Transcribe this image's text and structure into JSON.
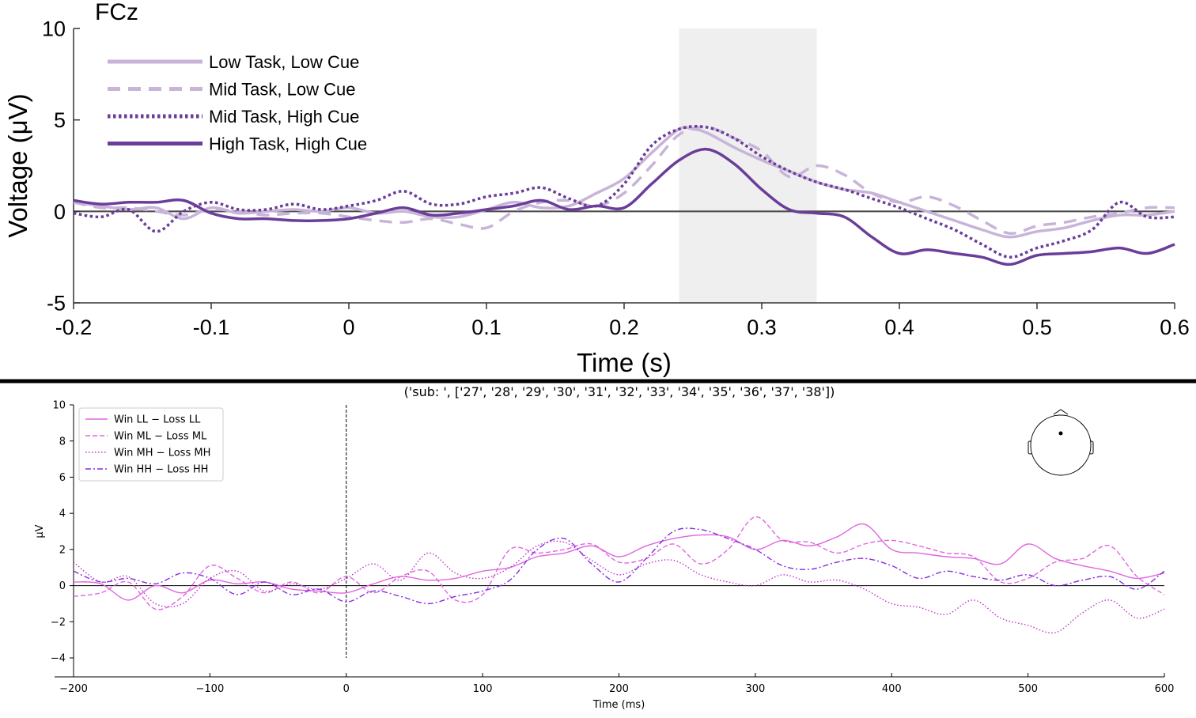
{
  "chart_data": [
    {
      "type": "line",
      "title": "FCz",
      "xlabel": "Time (s)",
      "ylabel": "Voltage (μV)",
      "xlim": [
        -0.2,
        0.6
      ],
      "ylim": [
        -5,
        10
      ],
      "xticks": [
        -0.2,
        -0.1,
        0,
        0.1,
        0.2,
        0.3,
        0.4,
        0.5,
        0.6
      ],
      "xtick_labels": [
        "-0.2",
        "-0.1",
        "0",
        "0.1",
        "0.2",
        "0.3",
        "0.4",
        "0.5",
        "0.6"
      ],
      "yticks": [
        -5,
        0,
        5,
        10
      ],
      "ytick_labels": [
        "-5",
        "0",
        "5",
        "10"
      ],
      "shaded_window": [
        0.24,
        0.34
      ],
      "zero_line": 0,
      "grid": false,
      "legend_position": "top-left",
      "series": [
        {
          "name": "Low Task, Low Cue",
          "color": "#c8b4d8",
          "style": "solid",
          "x": [
            -0.2,
            -0.18,
            -0.16,
            -0.14,
            -0.12,
            -0.1,
            -0.08,
            -0.06,
            -0.04,
            -0.02,
            0,
            0.02,
            0.04,
            0.06,
            0.08,
            0.1,
            0.12,
            0.14,
            0.16,
            0.18,
            0.2,
            0.22,
            0.24,
            0.25,
            0.26,
            0.28,
            0.3,
            0.32,
            0.34,
            0.36,
            0.38,
            0.4,
            0.42,
            0.44,
            0.46,
            0.48,
            0.5,
            0.52,
            0.54,
            0.56,
            0.58,
            0.6
          ],
          "y": [
            0.5,
            0.3,
            0.1,
            0.2,
            -0.4,
            0.2,
            -0.1,
            0.0,
            0.1,
            0.0,
            0.2,
            -0.1,
            0.0,
            -0.3,
            -0.3,
            0.1,
            0.5,
            0.2,
            0.3,
            1.0,
            1.8,
            3.2,
            4.5,
            4.5,
            4.3,
            3.5,
            2.8,
            2.2,
            1.6,
            1.2,
            1.0,
            0.5,
            0.0,
            -0.5,
            -1.0,
            -1.4,
            -1.1,
            -0.9,
            -0.5,
            -0.2,
            -0.2,
            0.0
          ]
        },
        {
          "name": "Mid Task, Low Cue",
          "color": "#c8b4d8",
          "style": "dashed",
          "x": [
            -0.2,
            -0.18,
            -0.16,
            -0.14,
            -0.12,
            -0.1,
            -0.08,
            -0.06,
            -0.04,
            -0.02,
            0,
            0.02,
            0.04,
            0.06,
            0.08,
            0.1,
            0.12,
            0.14,
            0.16,
            0.18,
            0.2,
            0.22,
            0.24,
            0.26,
            0.28,
            0.3,
            0.32,
            0.34,
            0.36,
            0.38,
            0.4,
            0.42,
            0.44,
            0.46,
            0.48,
            0.5,
            0.52,
            0.54,
            0.56,
            0.58,
            0.6
          ],
          "y": [
            0.5,
            0.2,
            0.2,
            0.0,
            -0.2,
            0.1,
            0.0,
            -0.2,
            -0.1,
            -0.1,
            -0.3,
            -0.5,
            -0.6,
            -0.4,
            -0.7,
            -0.9,
            0.0,
            0.5,
            0.6,
            0.3,
            1.0,
            2.5,
            4.2,
            4.6,
            4.0,
            3.3,
            1.9,
            2.5,
            2.0,
            1.0,
            0.5,
            0.8,
            0.3,
            -0.5,
            -1.2,
            -0.8,
            -0.6,
            -0.3,
            -0.1,
            0.2,
            0.2
          ]
        },
        {
          "name": "Mid Task, High Cue",
          "color": "#6a3d9a",
          "style": "dotted",
          "x": [
            -0.2,
            -0.18,
            -0.16,
            -0.14,
            -0.12,
            -0.1,
            -0.08,
            -0.06,
            -0.04,
            -0.02,
            0,
            0.02,
            0.04,
            0.06,
            0.08,
            0.1,
            0.12,
            0.14,
            0.16,
            0.18,
            0.2,
            0.22,
            0.24,
            0.26,
            0.28,
            0.3,
            0.32,
            0.34,
            0.36,
            0.38,
            0.4,
            0.42,
            0.44,
            0.46,
            0.48,
            0.5,
            0.52,
            0.54,
            0.56,
            0.58,
            0.6
          ],
          "y": [
            -0.1,
            -0.3,
            0.1,
            -1.1,
            0.0,
            0.5,
            0.1,
            0.1,
            0.4,
            0.1,
            0.3,
            0.6,
            1.1,
            0.4,
            0.4,
            0.8,
            1.0,
            1.3,
            0.7,
            0.3,
            1.5,
            3.6,
            4.5,
            4.6,
            4.0,
            3.0,
            2.2,
            1.6,
            1.2,
            0.7,
            0.2,
            -0.4,
            -1.0,
            -1.8,
            -2.5,
            -2.0,
            -1.6,
            -1.0,
            0.5,
            -0.3,
            -0.3
          ]
        },
        {
          "name": "High Task, High Cue",
          "color": "#6a3d9a",
          "style": "solid",
          "x": [
            -0.2,
            -0.18,
            -0.16,
            -0.14,
            -0.12,
            -0.1,
            -0.08,
            -0.06,
            -0.04,
            -0.02,
            0,
            0.02,
            0.04,
            0.06,
            0.08,
            0.1,
            0.12,
            0.14,
            0.16,
            0.18,
            0.2,
            0.22,
            0.24,
            0.26,
            0.28,
            0.3,
            0.32,
            0.34,
            0.36,
            0.38,
            0.4,
            0.42,
            0.44,
            0.46,
            0.48,
            0.5,
            0.52,
            0.54,
            0.56,
            0.58,
            0.6
          ],
          "y": [
            0.6,
            0.4,
            0.5,
            0.5,
            0.6,
            -0.1,
            -0.4,
            -0.4,
            -0.5,
            -0.5,
            -0.4,
            -0.1,
            0.2,
            -0.2,
            -0.1,
            0.1,
            0.3,
            0.6,
            0.1,
            0.3,
            0.2,
            1.5,
            2.8,
            3.4,
            2.6,
            1.2,
            0.1,
            -0.1,
            -0.3,
            -1.4,
            -2.3,
            -2.1,
            -2.3,
            -2.5,
            -2.9,
            -2.4,
            -2.3,
            -2.2,
            -2.0,
            -2.3,
            -1.8
          ]
        }
      ]
    },
    {
      "type": "line",
      "title": "('sub: ', ['27', '28', '29', '30', '31', '32', '33', '34', '35', '36', '37', '38'])",
      "xlabel": "Time (ms)",
      "ylabel": "µV",
      "xlim": [
        -200,
        600
      ],
      "ylim": [
        -4,
        10
      ],
      "xticks": [
        -200,
        -100,
        0,
        100,
        200,
        300,
        400,
        500,
        600
      ],
      "xtick_labels": [
        "−200",
        "−100",
        "0",
        "100",
        "200",
        "300",
        "400",
        "500",
        "600"
      ],
      "yticks": [
        -4,
        -2,
        0,
        2,
        4,
        6,
        8,
        10
      ],
      "ytick_labels": [
        "−4",
        "−2",
        "0",
        "2",
        "4",
        "6",
        "8",
        "10"
      ],
      "onset_line": 0,
      "zero_line": 0,
      "grid": false,
      "legend_position": "top-left",
      "sensor_inset": "head-outline-icon",
      "series": [
        {
          "name": "Win LL − Loss LL",
          "color": "#e066e0",
          "style": "solid",
          "x": [
            -200,
            -180,
            -160,
            -140,
            -120,
            -100,
            -80,
            -60,
            -40,
            -20,
            0,
            20,
            40,
            60,
            80,
            100,
            120,
            140,
            160,
            180,
            200,
            220,
            240,
            260,
            280,
            300,
            320,
            340,
            360,
            380,
            400,
            420,
            440,
            460,
            480,
            500,
            520,
            540,
            560,
            580,
            600
          ],
          "y": [
            0.2,
            0.1,
            -0.8,
            0.0,
            -0.4,
            0.3,
            0.1,
            0.2,
            -0.2,
            -0.3,
            -0.4,
            0.1,
            0.5,
            0.3,
            0.4,
            0.8,
            1.0,
            1.6,
            1.8,
            2.2,
            1.6,
            2.2,
            2.6,
            2.8,
            2.7,
            2.0,
            2.5,
            2.2,
            2.7,
            3.4,
            2.0,
            1.8,
            1.6,
            1.5,
            1.2,
            2.3,
            1.5,
            1.1,
            0.8,
            0.4,
            0.7
          ]
        },
        {
          "name": "Win ML − Loss ML",
          "color": "#e066e0",
          "style": "dashed",
          "x": [
            -200,
            -180,
            -160,
            -140,
            -120,
            -100,
            -80,
            -60,
            -40,
            -20,
            0,
            20,
            40,
            60,
            80,
            100,
            120,
            140,
            160,
            180,
            200,
            220,
            240,
            260,
            280,
            300,
            320,
            340,
            360,
            380,
            400,
            420,
            440,
            460,
            480,
            500,
            520,
            540,
            560,
            580,
            600
          ],
          "y": [
            -0.6,
            -0.4,
            0.2,
            -1.3,
            -0.6,
            1.1,
            0.4,
            -0.4,
            0.2,
            -0.4,
            0.5,
            -0.4,
            0.5,
            0.8,
            -0.8,
            -0.5,
            2.0,
            1.8,
            2.0,
            2.3,
            1.3,
            1.5,
            2.3,
            1.2,
            2.0,
            3.8,
            2.5,
            2.4,
            1.8,
            2.3,
            2.5,
            2.2,
            1.8,
            1.6,
            0.2,
            0.4,
            1.3,
            1.5,
            2.2,
            0.5,
            -0.5
          ]
        },
        {
          "name": "Win MH − Loss MH",
          "color": "#c030c8",
          "style": "dotted",
          "x": [
            -200,
            -180,
            -160,
            -140,
            -120,
            -100,
            -80,
            -60,
            -40,
            -20,
            0,
            20,
            40,
            60,
            80,
            100,
            120,
            140,
            160,
            180,
            200,
            220,
            240,
            260,
            280,
            300,
            320,
            340,
            360,
            380,
            400,
            420,
            440,
            460,
            480,
            500,
            520,
            540,
            560,
            580,
            600
          ],
          "y": [
            1.3,
            0.2,
            0.5,
            -1.0,
            -1.0,
            0.4,
            0.8,
            -0.3,
            0.1,
            -0.2,
            0.4,
            1.2,
            0.3,
            1.8,
            0.7,
            0.4,
            1.0,
            2.2,
            2.4,
            1.4,
            0.6,
            1.2,
            1.4,
            0.6,
            0.2,
            0.0,
            0.6,
            0.2,
            0.3,
            -0.2,
            -1.0,
            -1.2,
            -1.6,
            -0.8,
            -1.8,
            -2.2,
            -2.6,
            -1.5,
            -0.8,
            -1.8,
            -1.3
          ]
        },
        {
          "name": "Win HH − Loss HH",
          "color": "#8a2be2",
          "style": "dashdot",
          "x": [
            -200,
            -180,
            -160,
            -140,
            -120,
            -100,
            -80,
            -60,
            -40,
            -20,
            0,
            20,
            40,
            60,
            80,
            100,
            120,
            140,
            160,
            180,
            200,
            220,
            240,
            260,
            280,
            300,
            320,
            340,
            360,
            380,
            400,
            420,
            440,
            460,
            480,
            500,
            520,
            540,
            560,
            580,
            600
          ],
          "y": [
            0.8,
            0.2,
            0.4,
            0.1,
            0.7,
            0.4,
            -0.5,
            0.2,
            -0.5,
            -0.2,
            -0.9,
            -0.3,
            -0.6,
            -1.0,
            -0.6,
            -0.3,
            0.3,
            2.0,
            2.6,
            1.2,
            0.2,
            1.5,
            3.0,
            3.1,
            2.6,
            2.0,
            1.1,
            0.9,
            1.3,
            1.5,
            1.1,
            0.4,
            0.8,
            0.5,
            0.3,
            0.6,
            0.0,
            0.3,
            0.5,
            -0.2,
            0.8
          ]
        }
      ]
    }
  ]
}
